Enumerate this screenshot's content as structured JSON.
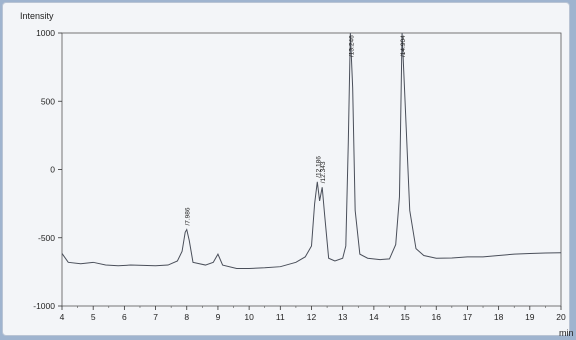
{
  "chart_data": {
    "type": "line",
    "title": "",
    "ylabel": "Intensity",
    "xlabel": "min",
    "xlim": [
      4,
      20
    ],
    "ylim": [
      -1000,
      1000
    ],
    "x_ticks": [
      "4",
      "5",
      "6",
      "7",
      "8",
      "9",
      "10",
      "11",
      "12",
      "13",
      "14",
      "15",
      "16",
      "17",
      "18",
      "19",
      "20"
    ],
    "y_ticks": [
      "1000",
      "500",
      "0",
      "-500",
      "-1000"
    ],
    "peaks": [
      {
        "label": "7.986",
        "x": 7.986,
        "y": -440
      },
      {
        "label": "12.186",
        "x": 12.186,
        "y": -90
      },
      {
        "label": "12.343",
        "x": 12.343,
        "y": -130
      },
      {
        "label": "13.246",
        "x": 13.246,
        "y": 1000
      },
      {
        "label": "14.904",
        "x": 14.904,
        "y": 1000
      }
    ],
    "series": [
      {
        "values": [
          [
            4.0,
            -615
          ],
          [
            4.2,
            -680
          ],
          [
            4.6,
            -690
          ],
          [
            5.0,
            -680
          ],
          [
            5.4,
            -700
          ],
          [
            5.8,
            -705
          ],
          [
            6.2,
            -700
          ],
          [
            6.6,
            -702
          ],
          [
            7.0,
            -705
          ],
          [
            7.4,
            -700
          ],
          [
            7.7,
            -670
          ],
          [
            7.85,
            -600
          ],
          [
            7.95,
            -460
          ],
          [
            8.0,
            -440
          ],
          [
            8.08,
            -520
          ],
          [
            8.2,
            -680
          ],
          [
            8.6,
            -700
          ],
          [
            8.85,
            -680
          ],
          [
            9.0,
            -620
          ],
          [
            9.15,
            -700
          ],
          [
            9.6,
            -725
          ],
          [
            10.0,
            -725
          ],
          [
            10.5,
            -720
          ],
          [
            11.0,
            -712
          ],
          [
            11.5,
            -680
          ],
          [
            11.8,
            -640
          ],
          [
            12.0,
            -560
          ],
          [
            12.1,
            -250
          ],
          [
            12.186,
            -90
          ],
          [
            12.26,
            -230
          ],
          [
            12.343,
            -130
          ],
          [
            12.42,
            -330
          ],
          [
            12.55,
            -650
          ],
          [
            12.75,
            -670
          ],
          [
            13.0,
            -650
          ],
          [
            13.1,
            -560
          ],
          [
            13.18,
            200
          ],
          [
            13.246,
            1000
          ],
          [
            13.32,
            600
          ],
          [
            13.4,
            -300
          ],
          [
            13.55,
            -620
          ],
          [
            13.8,
            -650
          ],
          [
            14.2,
            -660
          ],
          [
            14.5,
            -655
          ],
          [
            14.7,
            -550
          ],
          [
            14.82,
            -200
          ],
          [
            14.904,
            1000
          ],
          [
            15.0,
            500
          ],
          [
            15.15,
            -300
          ],
          [
            15.35,
            -580
          ],
          [
            15.6,
            -630
          ],
          [
            16.0,
            -650
          ],
          [
            16.5,
            -648
          ],
          [
            17.0,
            -640
          ],
          [
            17.5,
            -640
          ],
          [
            18.0,
            -630
          ],
          [
            18.5,
            -620
          ],
          [
            19.0,
            -615
          ],
          [
            19.5,
            -612
          ],
          [
            20.0,
            -610
          ]
        ]
      }
    ]
  }
}
